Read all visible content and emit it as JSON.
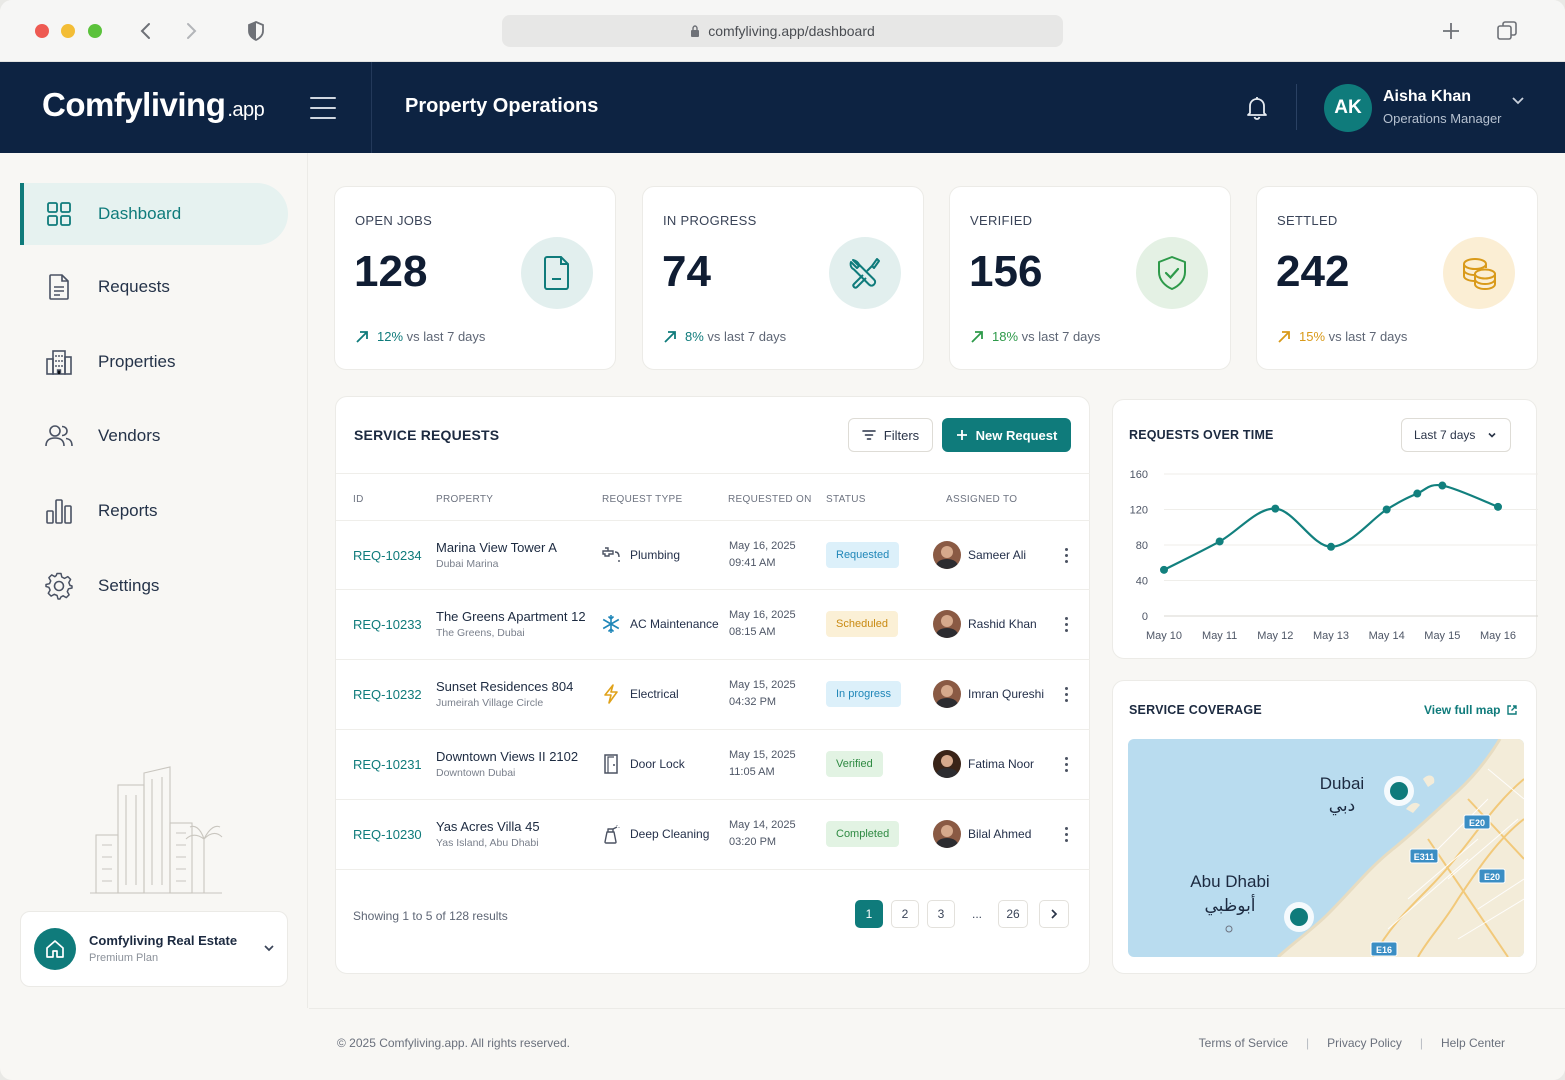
{
  "browser": {
    "url": "comfyliving.app/dashboard"
  },
  "header": {
    "logo_main": "Comfyliving",
    "logo_suffix": ".app",
    "title": "Property Operations",
    "user": {
      "initials": "AK",
      "name": "Aisha Khan",
      "role": "Operations Manager"
    }
  },
  "sidebar": {
    "items": [
      {
        "label": "Dashboard",
        "icon": "grid-icon",
        "active": true
      },
      {
        "label": "Requests",
        "icon": "document-icon"
      },
      {
        "label": "Properties",
        "icon": "building-icon"
      },
      {
        "label": "Vendors",
        "icon": "users-icon"
      },
      {
        "label": "Reports",
        "icon": "bar-chart-icon"
      },
      {
        "label": "Settings",
        "icon": "gear-icon"
      }
    ],
    "org": {
      "name": "Comfyliving Real Estate",
      "plan": "Premium Plan"
    }
  },
  "stats": [
    {
      "label": "OPEN JOBS",
      "value": "128",
      "change": "12%",
      "suffix": "vs last 7 days",
      "color": "#0f7b7b",
      "icon": "document-icon"
    },
    {
      "label": "IN PROGRESS",
      "value": "74",
      "change": "8%",
      "suffix": "vs last 7 days",
      "color": "#0f7b7b",
      "icon": "tools-icon"
    },
    {
      "label": "VERIFIED",
      "value": "156",
      "change": "18%",
      "suffix": "vs last 7 days",
      "color": "#2e9a4a",
      "icon": "shield-check-icon"
    },
    {
      "label": "SETTLED",
      "value": "242",
      "change": "15%",
      "suffix": "vs last 7 days",
      "color": "#d99a1a",
      "icon": "coins-icon"
    }
  ],
  "requests": {
    "title": "SERVICE REQUESTS",
    "filters_label": "Filters",
    "new_label": "New Request",
    "columns": [
      "ID",
      "PROPERTY",
      "REQUEST TYPE",
      "REQUESTED ON",
      "STATUS",
      "ASSIGNED TO"
    ],
    "rows": [
      {
        "id": "REQ-10234",
        "property": "Marina View Tower A",
        "area": "Dubai Marina",
        "type": "Plumbing",
        "type_icon": "faucet-icon",
        "date": "May 16, 2025",
        "time": "09:41 AM",
        "status": "Requested",
        "status_bg": "#dcf0fa",
        "status_fg": "#1f86b8",
        "assignee": "Sameer Ali"
      },
      {
        "id": "REQ-10233",
        "property": "The Greens Apartment 12",
        "area": "The Greens, Dubai",
        "type": "AC Maintenance",
        "type_icon": "snowflake-icon",
        "date": "May 16, 2025",
        "time": "08:15 AM",
        "status": "Scheduled",
        "status_bg": "#fbf0d6",
        "status_fg": "#c98a12",
        "assignee": "Rashid Khan"
      },
      {
        "id": "REQ-10232",
        "property": "Sunset Residences 804",
        "area": "Jumeirah Village Circle",
        "type": "Electrical",
        "type_icon": "lightning-icon",
        "date": "May 15, 2025",
        "time": "04:32 PM",
        "status": "In progress",
        "status_bg": "#dcf0fa",
        "status_fg": "#1f86b8",
        "assignee": "Imran Qureshi"
      },
      {
        "id": "REQ-10231",
        "property": "Downtown Views II 2102",
        "area": "Downtown Dubai",
        "type": "Door Lock",
        "type_icon": "door-icon",
        "date": "May 15, 2025",
        "time": "11:05 AM",
        "status": "Verified",
        "status_bg": "#e2f3e3",
        "status_fg": "#2e8a42",
        "assignee": "Fatima Noor"
      },
      {
        "id": "REQ-10230",
        "property": "Yas Acres Villa 45",
        "area": "Yas Island, Abu Dhabi",
        "type": "Deep Cleaning",
        "type_icon": "spray-icon",
        "date": "May 14, 2025",
        "time": "03:20 PM",
        "status": "Completed",
        "status_bg": "#e2f3e3",
        "status_fg": "#2e8a42",
        "assignee": "Bilal Ahmed"
      }
    ],
    "showing": "Showing 1 to 5 of 128 results",
    "pages": [
      "1",
      "2",
      "3",
      "...",
      "26"
    ],
    "current_page": "1"
  },
  "chart_panel": {
    "title": "REQUESTS OVER TIME",
    "range": "Last 7 days"
  },
  "chart_data": {
    "type": "line",
    "title": "REQUESTS OVER TIME",
    "x": [
      "May 10",
      "May 11",
      "May 12",
      "May 13",
      "May 14",
      "May 15",
      "May 16"
    ],
    "series": [
      {
        "values": [
          52,
          84,
          121,
          78,
          120,
          147,
          123
        ]
      }
    ],
    "extra_points": [
      {
        "x": "May 14.5",
        "y": 138
      }
    ],
    "yticks": [
      0,
      40,
      80,
      120,
      160
    ],
    "ylim": [
      0,
      160
    ],
    "grid": true,
    "color": "#12807e"
  },
  "coverage": {
    "title": "SERVICE COVERAGE",
    "link": "View full map",
    "labels": {
      "dubai_en": "Dubai",
      "dubai_ar": "دبي",
      "abudhabi_en": "Abu Dhabi",
      "abudhabi_ar": "أبوظبي",
      "road1": "E20",
      "road2": "E311",
      "road3": "E20",
      "road4": "E16"
    }
  },
  "footer": {
    "copyright": "© 2025 Comfyliving.app. All rights reserved.",
    "links": [
      "Terms of Service",
      "Privacy Policy",
      "Help Center"
    ]
  }
}
